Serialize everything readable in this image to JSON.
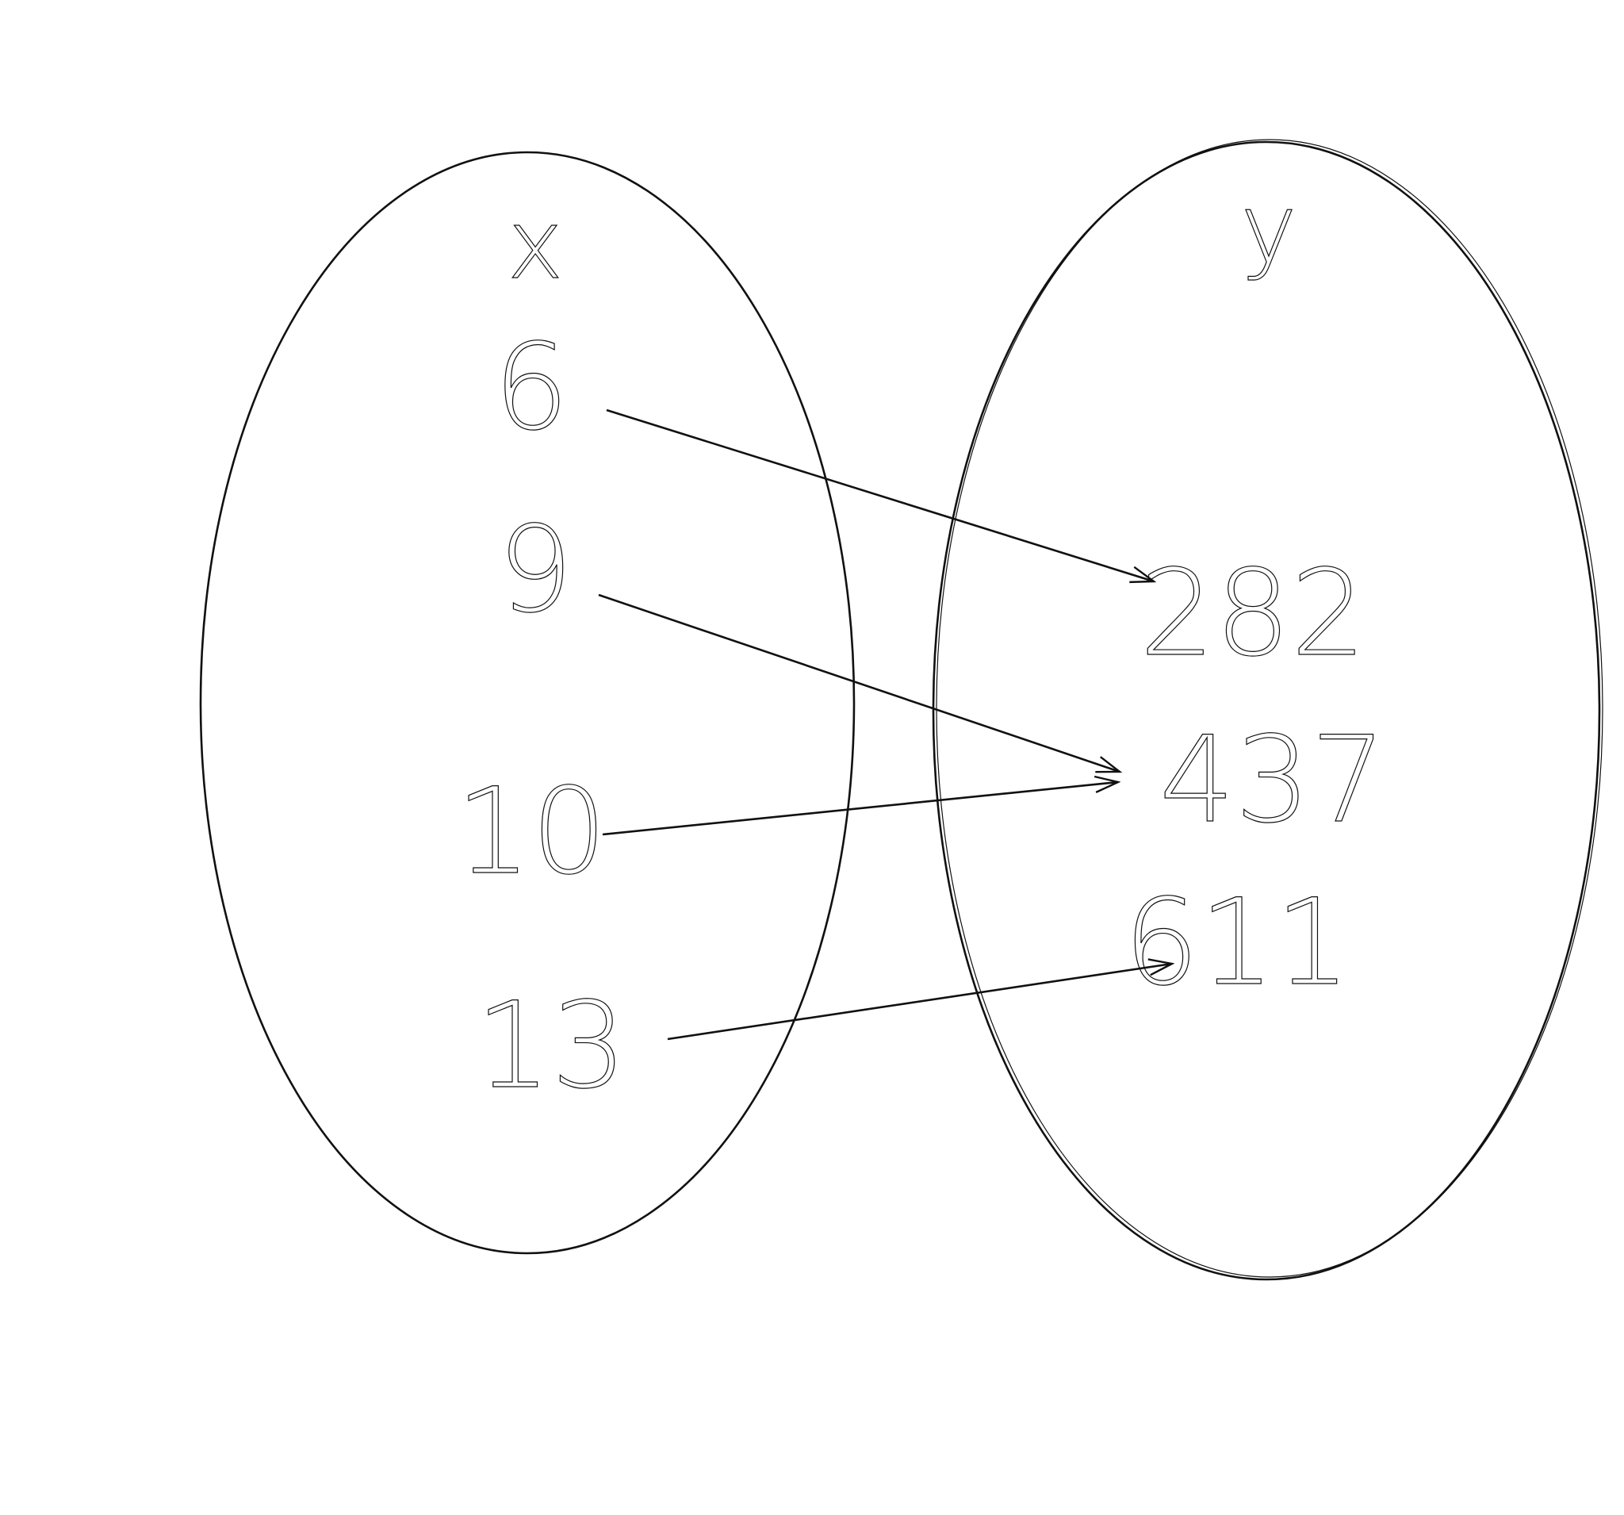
{
  "domain_set": {
    "label": "x",
    "elements": [
      "6",
      "9",
      "10",
      "13"
    ]
  },
  "range_set": {
    "label": "y",
    "elements": [
      "282",
      "437",
      "611"
    ]
  },
  "mappings": [
    {
      "from": "6",
      "to": "282"
    },
    {
      "from": "9",
      "to": "437"
    },
    {
      "from": "10",
      "to": "437"
    },
    {
      "from": "13",
      "to": "611"
    }
  ],
  "colors": {
    "ink": "#111111",
    "background": "#ffffff"
  }
}
